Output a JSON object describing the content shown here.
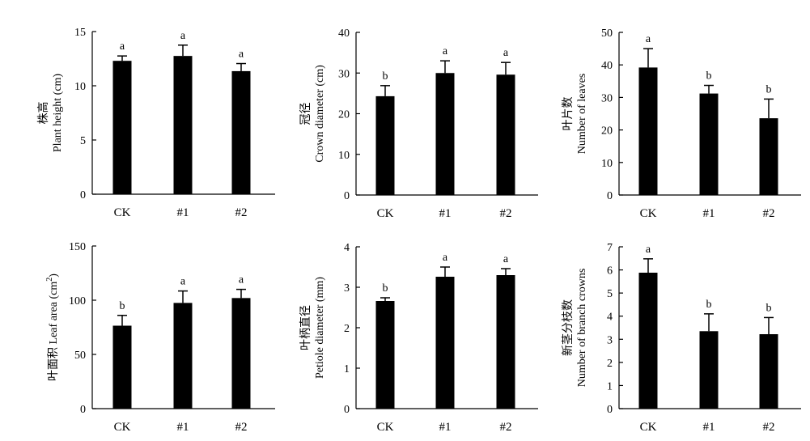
{
  "chart_data": [
    {
      "type": "bar",
      "ylabel_line1": "株高",
      "ylabel_line2": "Plant height (cm)",
      "categories": [
        "CK",
        "#1",
        "#2"
      ],
      "values": [
        12.3,
        12.75,
        11.35
      ],
      "errors": [
        0.45,
        1.0,
        0.7
      ],
      "significance": [
        "a",
        "a",
        "a"
      ],
      "ylim": [
        0,
        15
      ],
      "yticks": [
        "0",
        "5",
        "10",
        "15"
      ]
    },
    {
      "type": "bar",
      "ylabel_line1": "冠径",
      "ylabel_line2": "Crown diameter (cm)",
      "categories": [
        "CK",
        "#1",
        "#2"
      ],
      "values": [
        24.3,
        30.0,
        29.6
      ],
      "errors": [
        2.6,
        3.0,
        3.0
      ],
      "significance": [
        "b",
        "a",
        "a"
      ],
      "ylim": [
        0,
        40
      ],
      "yticks": [
        "0",
        "10",
        "20",
        "30",
        "40"
      ]
    },
    {
      "type": "bar",
      "ylabel_line1": "叶片数",
      "ylabel_line2": "Number of leaves",
      "categories": [
        "CK",
        "#1",
        "#2"
      ],
      "values": [
        39.2,
        31.2,
        23.6
      ],
      "errors": [
        5.8,
        2.5,
        5.9
      ],
      "significance": [
        "a",
        "b",
        "b"
      ],
      "ylim": [
        0,
        50
      ],
      "yticks": [
        "0",
        "10",
        "20",
        "30",
        "40",
        "50"
      ]
    },
    {
      "type": "bar",
      "ylabel_line1": "叶面积 Leaf area (cm",
      "ylabel_sup": "2",
      "ylabel_close": ")",
      "categories": [
        "CK",
        "#1",
        "#2"
      ],
      "values": [
        76.5,
        97.5,
        102.0
      ],
      "errors": [
        9.5,
        11.0,
        8.0
      ],
      "significance": [
        "b",
        "a",
        "a"
      ],
      "ylim": [
        0,
        150
      ],
      "yticks": [
        "0",
        "50",
        "100",
        "150"
      ]
    },
    {
      "type": "bar",
      "ylabel_line1": "叶柄直径",
      "ylabel_line2": "Petiole diameter (mm)",
      "categories": [
        "CK",
        "#1",
        "#2"
      ],
      "values": [
        2.66,
        3.26,
        3.3
      ],
      "errors": [
        0.08,
        0.24,
        0.16
      ],
      "significance": [
        "b",
        "a",
        "a"
      ],
      "ylim": [
        0,
        4
      ],
      "yticks": [
        "0",
        "1",
        "2",
        "3",
        "4"
      ]
    },
    {
      "type": "bar",
      "ylabel_line1": "新茎分枝数",
      "ylabel_line2": "Number of branch crowns",
      "categories": [
        "CK",
        "#1",
        "#2"
      ],
      "values": [
        5.88,
        3.35,
        3.22
      ],
      "errors": [
        0.6,
        0.75,
        0.72
      ],
      "significance": [
        "a",
        "b",
        "b"
      ],
      "ylim": [
        0,
        7
      ],
      "yticks": [
        "0",
        "1",
        "2",
        "3",
        "4",
        "5",
        "6",
        "7"
      ]
    }
  ]
}
